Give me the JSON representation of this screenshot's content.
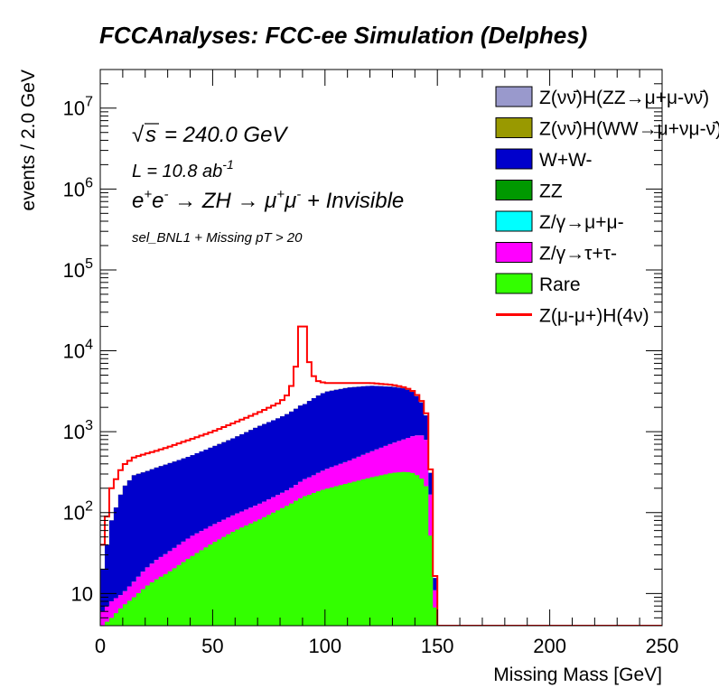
{
  "chart_data": {
    "type": "area",
    "title": "FCCAnalyses: FCC-ee Simulation (Delphes)",
    "xlabel": "Missing Mass [GeV]",
    "ylabel": "events / 2.0 GeV",
    "xlim": [
      0,
      250
    ],
    "ylim": [
      4,
      30000000
    ],
    "yscale": "log",
    "grid": false,
    "legend_position": "top-right",
    "bin_width": 2.0,
    "x_ticks": [
      "0",
      "50",
      "100",
      "150",
      "200",
      "250"
    ],
    "annotations": {
      "sqrt_s": "= 240.0 GeV",
      "lumi": "L = 10.8 ab",
      "lumi_exp": "-1",
      "process": "e+e- → ZH → μ+μ- + Invisible",
      "selection": "sel_BNL1 + Missing pT > 20"
    },
    "x": [
      1,
      5,
      10,
      15,
      20,
      25,
      30,
      40,
      50,
      60,
      70,
      80,
      84,
      86,
      88,
      89,
      90,
      91,
      92,
      94,
      96,
      100,
      110,
      120,
      130,
      136,
      140,
      144,
      146,
      148,
      150
    ],
    "series": [
      {
        "name": "Rare",
        "color": "#33ff00",
        "values": [
          4,
          5,
          7,
          9,
          12,
          15,
          18,
          28,
          42,
          60,
          80,
          110,
          125,
          135,
          145,
          150,
          155,
          160,
          162,
          170,
          180,
          195,
          230,
          270,
          310,
          320,
          305,
          250,
          180,
          15,
          3
        ]
      },
      {
        "name": "Z/γ→τ+τ-",
        "color": "#ff00ff",
        "values": [
          6,
          8,
          10,
          14,
          20,
          26,
          32,
          50,
          70,
          95,
          125,
          170,
          195,
          210,
          230,
          240,
          250,
          260,
          265,
          280,
          300,
          340,
          430,
          560,
          720,
          820,
          900,
          900,
          700,
          40,
          3
        ]
      },
      {
        "name": "Z/γ→μ+μ-",
        "color": "#00ffff",
        "values": [
          6,
          8,
          10,
          14,
          20,
          26,
          32,
          50,
          70,
          95,
          125,
          170,
          195,
          210,
          230,
          240,
          250,
          260,
          265,
          280,
          300,
          340,
          430,
          560,
          720,
          820,
          900,
          900,
          700,
          40,
          3
        ]
      },
      {
        "name": "ZZ",
        "color": "#009900",
        "values": [
          6,
          8,
          10,
          14,
          20,
          26,
          32,
          50,
          70,
          95,
          125,
          170,
          195,
          210,
          230,
          240,
          250,
          260,
          265,
          280,
          300,
          340,
          430,
          560,
          720,
          820,
          900,
          900,
          700,
          40,
          3
        ]
      },
      {
        "name": "W+W-",
        "color": "#0000cc",
        "values": [
          20,
          80,
          200,
          290,
          320,
          360,
          400,
          500,
          650,
          850,
          1150,
          1500,
          1700,
          1850,
          2000,
          2100,
          2150,
          2200,
          2300,
          2500,
          2700,
          3100,
          3500,
          3700,
          3600,
          3400,
          3000,
          2100,
          1200,
          80,
          3
        ]
      },
      {
        "name": "Z(νν̄)H(WW→μ+νμ-ν̄)",
        "color": "#999900",
        "values": [
          20,
          80,
          200,
          290,
          320,
          360,
          400,
          500,
          650,
          850,
          1150,
          1500,
          1700,
          1850,
          2000,
          2100,
          2150,
          2200,
          2300,
          2500,
          2700,
          3100,
          3500,
          3700,
          3600,
          3400,
          3000,
          2100,
          1200,
          80,
          3
        ]
      },
      {
        "name": "Z(νν̄)H(ZZ→μ+μ-νν̄)",
        "color": "#9999cc",
        "values": [
          20,
          80,
          200,
          290,
          320,
          360,
          400,
          500,
          650,
          850,
          1150,
          1500,
          1700,
          1850,
          2000,
          2100,
          2150,
          2200,
          2300,
          2500,
          2700,
          3100,
          3500,
          3700,
          3600,
          3400,
          3000,
          2100,
          1200,
          80,
          3
        ]
      },
      {
        "name": "Z(μ-μ+)H(4ν)",
        "color": "#ff0000",
        "style": "line",
        "values": [
          40,
          200,
          380,
          480,
          530,
          580,
          640,
          800,
          1000,
          1300,
          1700,
          2300,
          3000,
          4500,
          9000,
          20000,
          33000,
          20000,
          9500,
          5500,
          4300,
          4000,
          4000,
          4000,
          3800,
          3500,
          3100,
          2200,
          1300,
          90,
          3
        ]
      }
    ]
  },
  "legend": [
    {
      "label": "Z(νν̄)H(ZZ→μ+μ-νν̄)",
      "color": "#9999cc",
      "kind": "box"
    },
    {
      "label": "Z(νν̄)H(WW→μ+νμ-ν̄)",
      "color": "#999900",
      "kind": "box"
    },
    {
      "label": "W+W-",
      "color": "#0000cc",
      "kind": "box"
    },
    {
      "label": "ZZ",
      "color": "#009900",
      "kind": "box"
    },
    {
      "label": "Z/γ→μ+μ-",
      "color": "#00ffff",
      "kind": "box"
    },
    {
      "label": "Z/γ→τ+τ-",
      "color": "#ff00ff",
      "kind": "box"
    },
    {
      "label": "Rare",
      "color": "#33ff00",
      "kind": "box"
    },
    {
      "label": "Z(μ-μ+)H(4ν)",
      "color": "#ff0000",
      "kind": "line"
    }
  ]
}
